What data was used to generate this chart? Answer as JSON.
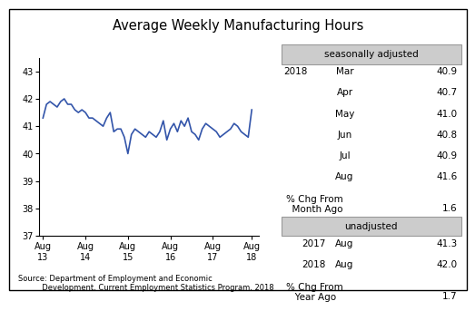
{
  "title": "Average Weekly Manufacturing Hours",
  "line_color": "#3355aa",
  "line_width": 1.2,
  "ylim": [
    37,
    43.5
  ],
  "yticks": [
    37,
    38,
    39,
    40,
    41,
    42,
    43
  ],
  "xtick_labels": [
    "Aug\n13",
    "Aug\n14",
    "Aug\n15",
    "Aug\n16",
    "Aug\n17",
    "Aug\n18"
  ],
  "source_text": "Source: Department of Employment and Economic\n          Development, Current Employment Statistics Program, 2018",
  "seasonally_adjusted_label": "seasonally adjusted",
  "unadjusted_label": "unadjusted",
  "sa_year": "2018",
  "sa_data": [
    [
      "Mar",
      "40.9"
    ],
    [
      "Apr",
      "40.7"
    ],
    [
      "May",
      "41.0"
    ],
    [
      "Jun",
      "40.8"
    ],
    [
      "Jul",
      "40.9"
    ],
    [
      "Aug",
      "41.6"
    ]
  ],
  "sa_pct_label": "% Chg From\n  Month Ago",
  "sa_pct_value": "1.6",
  "ua_data": [
    [
      "2017",
      "Aug",
      "41.3"
    ],
    [
      "2018",
      "Aug",
      "42.0"
    ]
  ],
  "ua_pct_label": "% Chg From\n   Year Ago",
  "ua_pct_value": "1.7",
  "y_values": [
    41.3,
    41.8,
    41.9,
    41.8,
    41.7,
    41.9,
    42.0,
    41.8,
    41.8,
    41.6,
    41.5,
    41.6,
    41.5,
    41.3,
    41.3,
    41.2,
    41.1,
    41.0,
    41.3,
    41.5,
    40.8,
    40.9,
    40.9,
    40.6,
    40.0,
    40.7,
    40.9,
    40.8,
    40.7,
    40.6,
    40.8,
    40.7,
    40.6,
    40.8,
    41.2,
    40.5,
    40.9,
    41.1,
    40.8,
    41.2,
    41.0,
    41.3,
    40.8,
    40.7,
    40.5,
    40.9,
    41.1,
    41.0,
    40.9,
    40.8,
    40.6,
    40.7,
    40.8,
    40.9,
    41.1,
    41.0,
    40.8,
    40.7,
    40.6,
    41.6
  ],
  "background_color": "#ffffff",
  "box_border_color": "#999999",
  "box_fill_color": "#cccccc"
}
